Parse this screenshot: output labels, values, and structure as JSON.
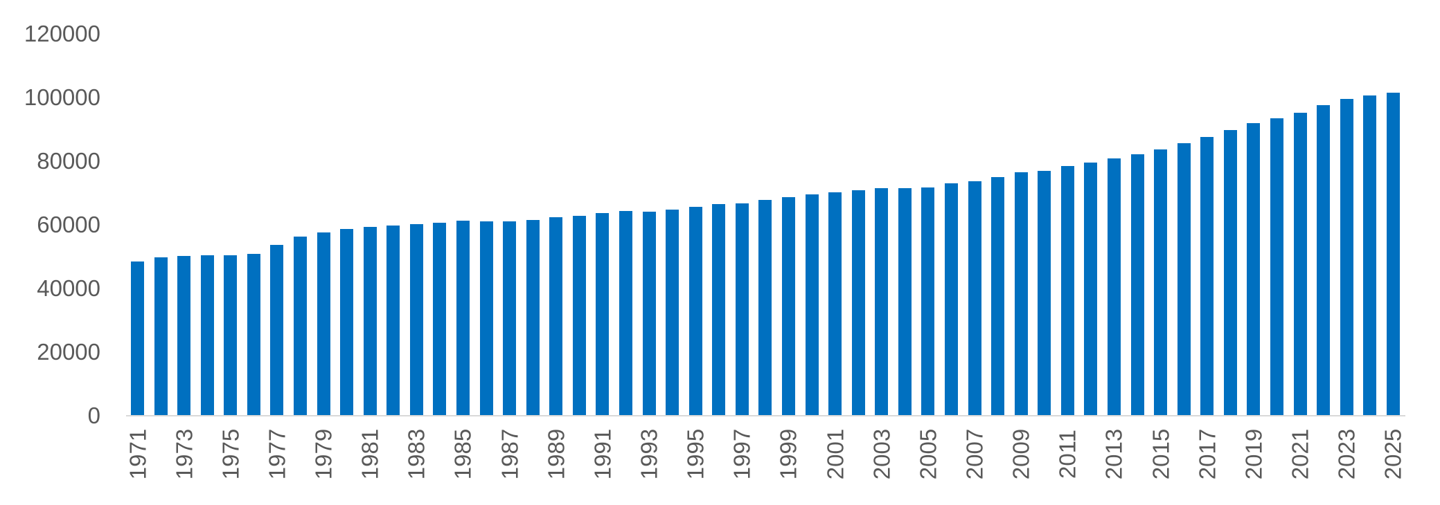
{
  "chart_data": {
    "type": "bar",
    "title": "",
    "xlabel": "",
    "ylabel": "",
    "categories": [
      "1971",
      "1972",
      "1973",
      "1974",
      "1975",
      "1976",
      "1977",
      "1978",
      "1979",
      "1980",
      "1981",
      "1982",
      "1983",
      "1984",
      "1985",
      "1986",
      "1987",
      "1988",
      "1989",
      "1990",
      "1991",
      "1992",
      "1993",
      "1994",
      "1995",
      "1996",
      "1997",
      "1998",
      "1999",
      "2000",
      "2001",
      "2002",
      "2003",
      "2004",
      "2005",
      "2006",
      "2007",
      "2008",
      "2009",
      "2010",
      "2011",
      "2012",
      "2013",
      "2014",
      "2015",
      "2016",
      "2017",
      "2018",
      "2019",
      "2020",
      "2021",
      "2022",
      "2023",
      "2024",
      "2025"
    ],
    "values": [
      48200,
      49600,
      49900,
      50300,
      50200,
      50700,
      53400,
      56000,
      57500,
      58500,
      59100,
      59600,
      59900,
      60400,
      61000,
      60900,
      60900,
      61200,
      62100,
      62700,
      63500,
      64200,
      63900,
      64600,
      65500,
      66200,
      66500,
      67600,
      68500,
      69400,
      70100,
      70700,
      71200,
      71200,
      71500,
      72800,
      73400,
      74800,
      76200,
      76700,
      78200,
      79400,
      80700,
      82000,
      83500,
      85400,
      87500,
      89600,
      91800,
      93300,
      94900,
      97400,
      99400,
      100400,
      101200
    ],
    "x_axis_labeled_ticks": [
      "1971",
      "1973",
      "1975",
      "1977",
      "1979",
      "1981",
      "1983",
      "1985",
      "1987",
      "1989",
      "1991",
      "1993",
      "1995",
      "1997",
      "1999",
      "2001",
      "2003",
      "2005",
      "2007",
      "2009",
      "2011",
      "2013",
      "2015",
      "2017",
      "2019",
      "2021",
      "2023",
      "2025"
    ],
    "y_axis_ticks": [
      "0",
      "20000",
      "40000",
      "60000",
      "80000",
      "100000",
      "120000"
    ],
    "ylim": [
      0,
      120000
    ],
    "y_tick_interval": 20000,
    "grid": false,
    "legend": "none",
    "bar_color": "#0070C0",
    "axis_line_color": "#D9D9D9",
    "tick_label_color": "#595959"
  }
}
